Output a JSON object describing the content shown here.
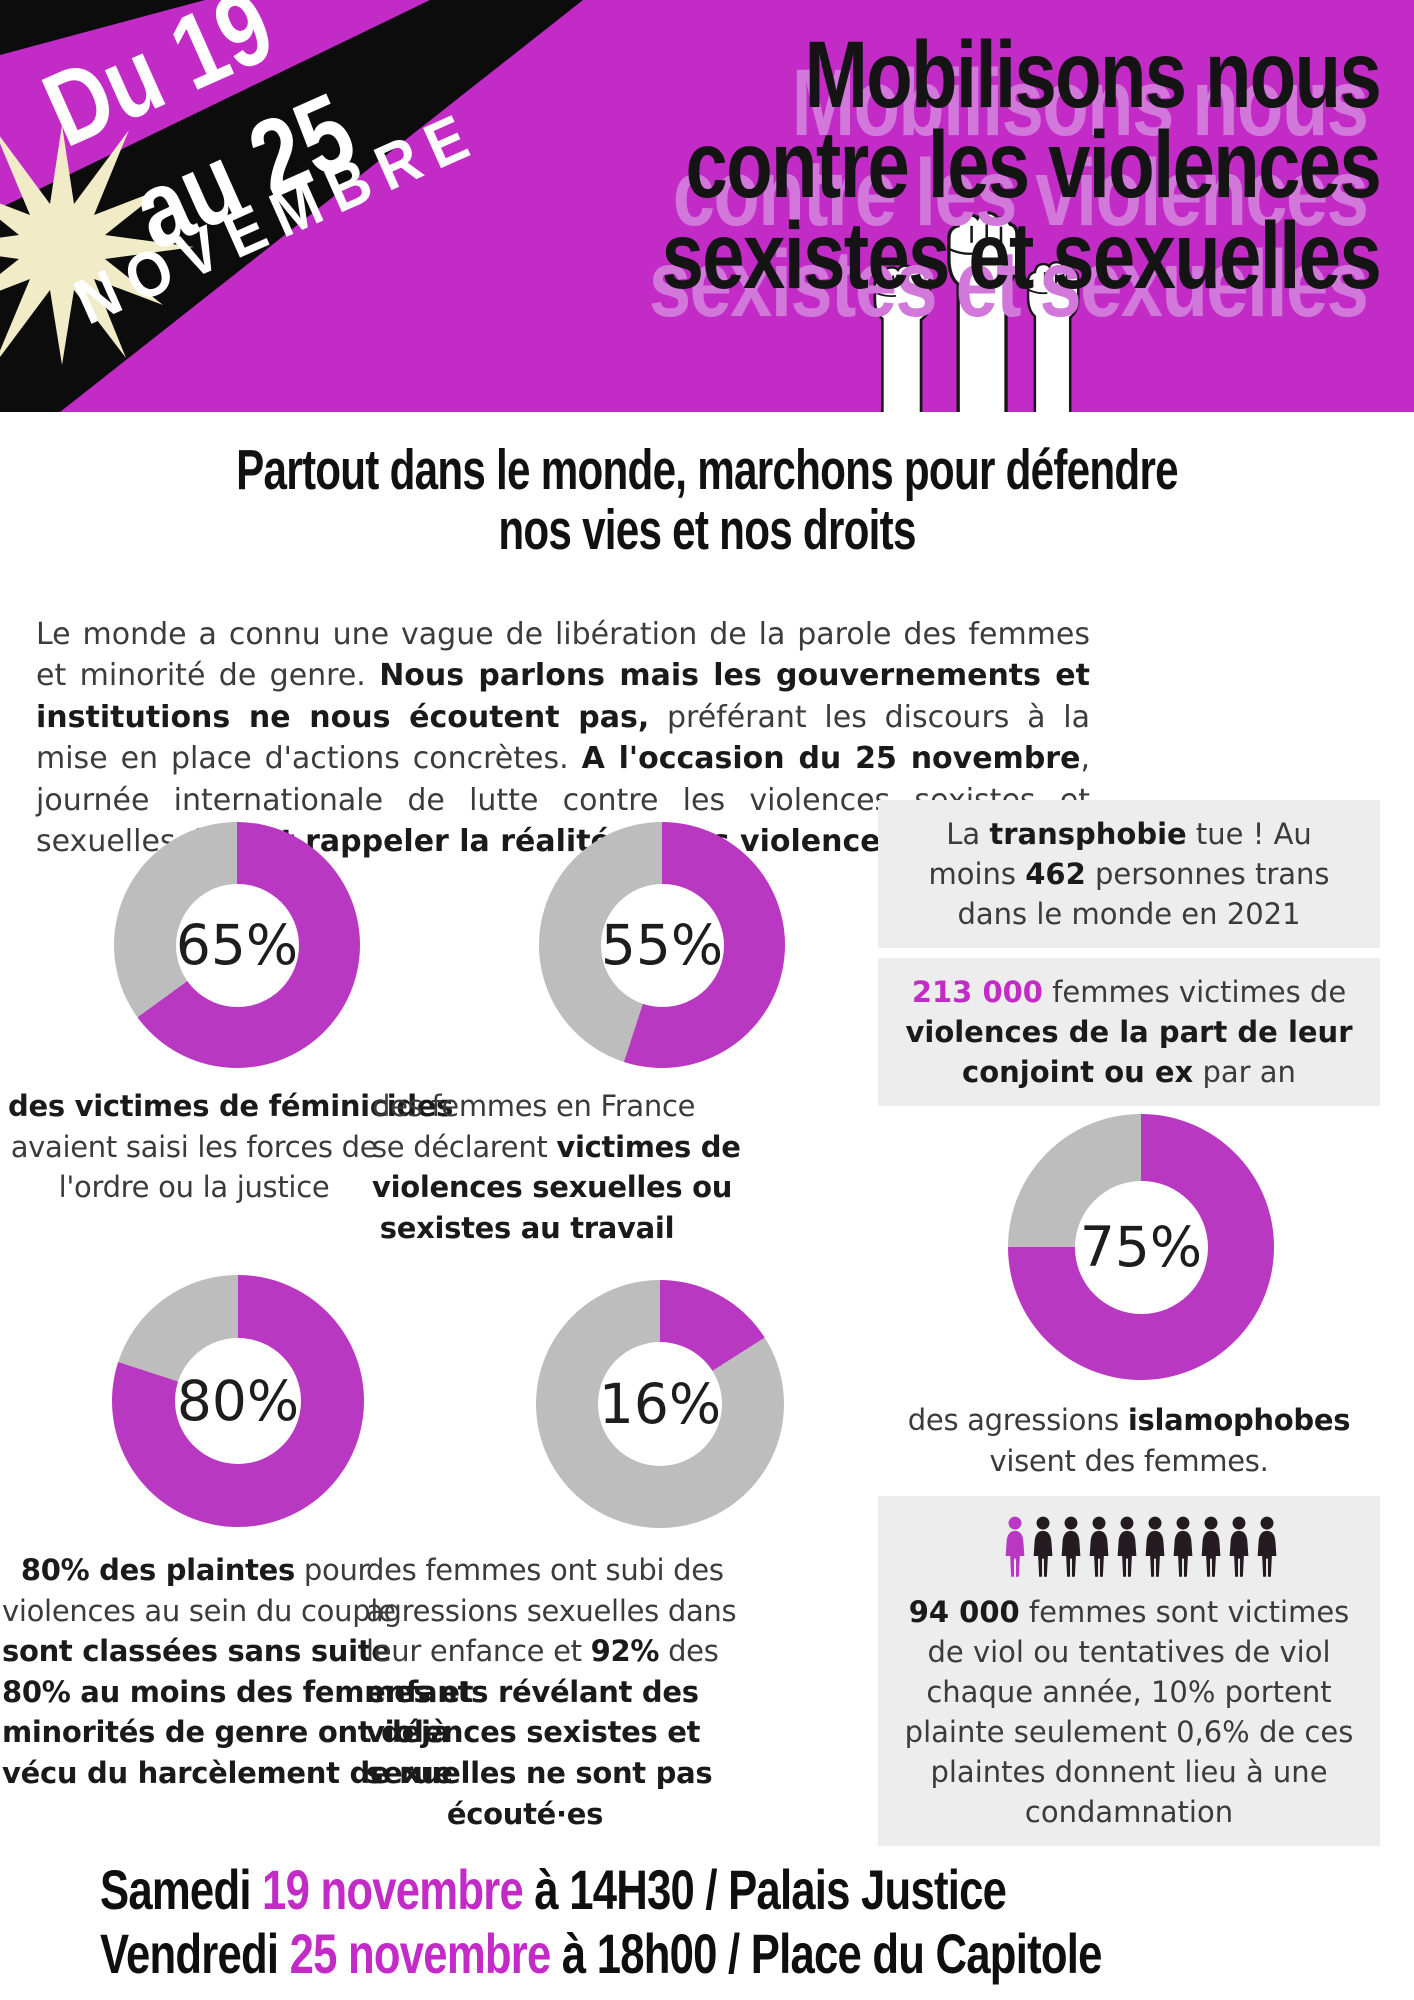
{
  "colors": {
    "accent": "#c32bc7",
    "header_bg": "#c32bc7",
    "title_shadow": "#d178da",
    "donut_fill": "#b938c1",
    "donut_empty": "#bdbdbd",
    "box_bg": "#ededed",
    "cream": "#f1ebc8",
    "pictogram_dark": "#231b1f"
  },
  "header": {
    "date_banner": {
      "line1": "Du 19",
      "line2": "au 25",
      "line3": "NOVEMBRE"
    },
    "title_lines": [
      "Mobilisons nous",
      "contre les violences",
      "sexistes et sexuelles"
    ]
  },
  "main": {
    "heading_lines": [
      "Partout dans le monde, marchons pour défendre",
      "nos vies et nos droits"
    ],
    "intro_segments": [
      {
        "t": "Le monde a connu une vague de libération de la parole des femmes et minorité de genre. "
      },
      {
        "t": "Nous parlons mais les gouvernements et institutions ne nous écoutent pas,",
        "b": 1
      },
      {
        "t": " préférant les discours à la mise en place d'actions concrètes. "
      },
      {
        "t": "A l'occasion du 25 novembre",
        "b": 1
      },
      {
        "t": ", journée internationale de lutte contre les violences sexistes et sexuelles, "
      },
      {
        "t": "il faut rappeler la réalité de ces violences.",
        "b": 1
      }
    ]
  },
  "chart_data": [
    {
      "type": "donut",
      "label": "65%",
      "value": 65,
      "caption_lines": [
        [
          {
            "t": "des victimes de féminicides",
            "b": 1
          }
        ],
        [
          {
            "t": "avaient saisi les forces de"
          }
        ],
        [
          {
            "t": "l'ordre ou la justice"
          }
        ]
      ]
    },
    {
      "type": "donut",
      "label": "55%",
      "value": 55,
      "caption_lines": [
        [
          {
            "t": "des femmes en France"
          }
        ],
        [
          {
            "t": "se déclarent "
          },
          {
            "t": "victimes de",
            "b": 1
          }
        ],
        [
          {
            "t": "violences sexuelles ou",
            "b": 1
          }
        ],
        [
          {
            "t": "sexistes au travail",
            "b": 1
          }
        ]
      ]
    },
    {
      "type": "donut",
      "label": "80%",
      "value": 80,
      "caption_lines": [
        [
          {
            "t": "80% des plaintes",
            "b": 1
          },
          {
            "t": " pour"
          }
        ],
        [
          {
            "t": "violences au sein du couple"
          }
        ],
        [
          {
            "t": "sont classées sans suite",
            "b": 1
          }
        ],
        [
          {
            "t": "80% au moins des femmes et",
            "b": 1
          }
        ],
        [
          {
            "t": "minorités de genre ont déjà",
            "b": 1
          }
        ],
        [
          {
            "t": "vécu du harcèlement de rue",
            "b": 1
          }
        ]
      ]
    },
    {
      "type": "donut",
      "label": "16%",
      "value": 16,
      "caption_lines": [
        [
          {
            "t": "des femmes ont subi des"
          }
        ],
        [
          {
            "t": "agressions sexuelles dans"
          }
        ],
        [
          {
            "t": "leur enfance et "
          },
          {
            "t": "92%",
            "b": 1
          },
          {
            "t": " des"
          }
        ],
        [
          {
            "t": "enfants révélant des",
            "b": 1
          }
        ],
        [
          {
            "t": "violences sexistes et",
            "b": 1
          }
        ],
        [
          {
            "t": "sexuelles ne sont pas",
            "b": 1
          }
        ],
        [
          {
            "t": "écouté·es",
            "b": 1
          }
        ]
      ]
    },
    {
      "type": "donut",
      "label": "75%",
      "value": 75,
      "caption_lines": [
        [
          {
            "t": "des agressions "
          },
          {
            "t": "islamophobes",
            "b": 1
          }
        ],
        [
          {
            "t": "visent des femmes."
          }
        ]
      ]
    }
  ],
  "stat_boxes": {
    "transphobia": {
      "segments": [
        {
          "t": "La "
        },
        {
          "t": "transphobie",
          "b": 1
        },
        {
          "t": " tue ! Au moins "
        },
        {
          "t": "462",
          "b": 1
        },
        {
          "t": " personnes trans dans le monde en 2021"
        }
      ]
    },
    "conjugal": {
      "segments": [
        {
          "t": "213 000",
          "b": 1,
          "c": "accent"
        },
        {
          "t": " femmes victimes de "
        },
        {
          "t": "violences de la part de leur conjoint ou ex",
          "b": 1
        },
        {
          "t": " par an"
        }
      ]
    },
    "rape": {
      "pictogram": {
        "total": 10,
        "highlighted": 1
      },
      "segments": [
        {
          "t": "94 000",
          "b": 1
        },
        {
          "t": " femmes sont victimes de viol ou tentatives de viol chaque année, 10% portent plainte seulement 0,6% de ces plaintes donnent lieu à une condamnation"
        }
      ]
    }
  },
  "footer": {
    "lines": [
      [
        {
          "t": "Samedi "
        },
        {
          "t": "19 novembre",
          "c": "accent"
        },
        {
          "t": " à 14H30 / Palais Justice"
        }
      ],
      [
        {
          "t": "Vendredi "
        },
        {
          "t": "25 novembre",
          "c": "accent"
        },
        {
          "t": " à 18h00 / Place du Capitole"
        }
      ]
    ]
  }
}
